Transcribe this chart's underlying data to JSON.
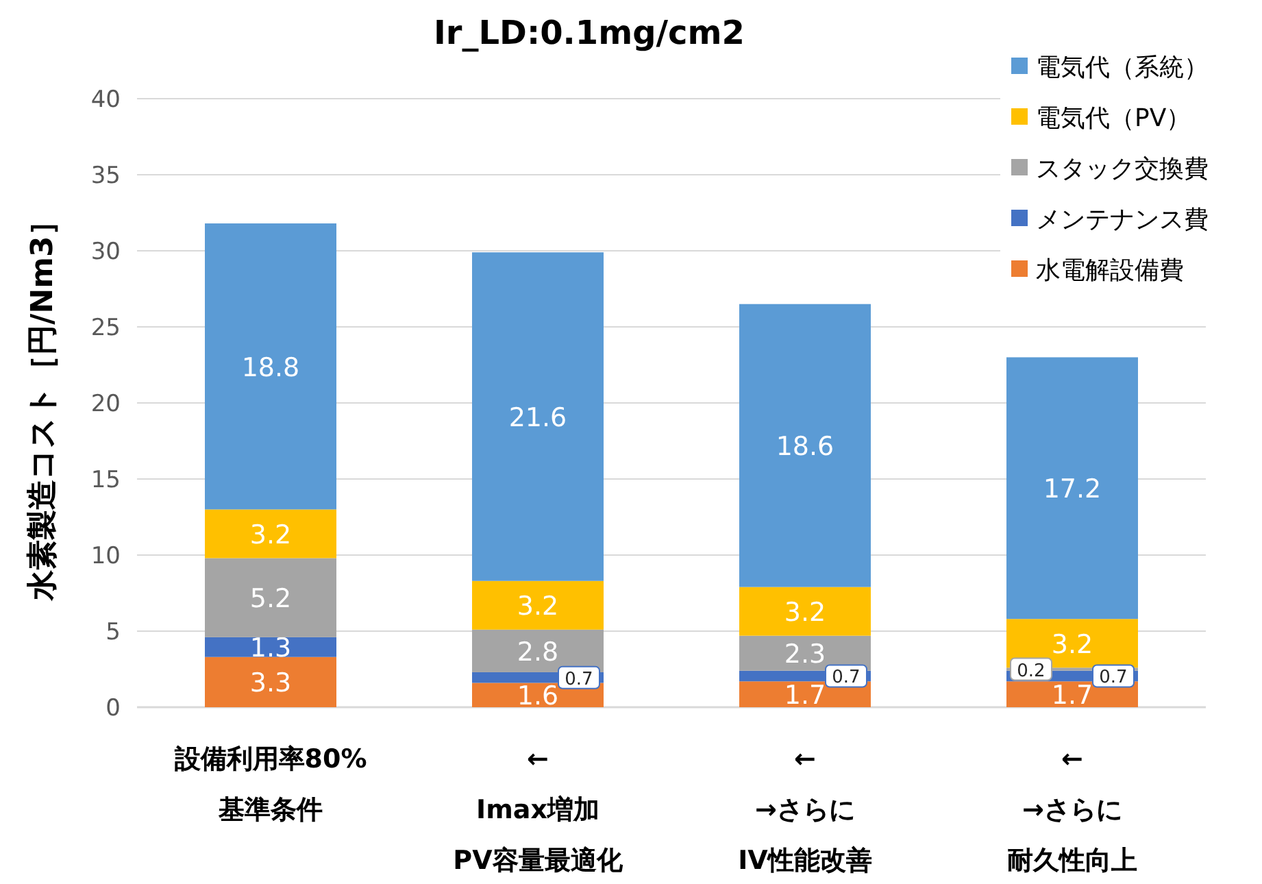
{
  "chart_data": {
    "type": "bar",
    "title": "Ir_LD:0.1mg/cm2",
    "ylabel": "水素製造コスト［円/Nm3］",
    "categories": [
      "設備利用率80%\n基準条件",
      "←\nImax増加\nPV容量最適化",
      "←\n→さらに\nIV性能改善",
      "←\n→さらに耐久性向上"
    ],
    "stacked": true,
    "data_labels": true,
    "grid": "y",
    "legend": "top right",
    "ylim": [
      0,
      40
    ],
    "yticks": [
      0,
      5,
      10,
      15,
      20,
      25,
      30,
      35,
      40
    ],
    "series": [
      {
        "name": "水電解設備費",
        "color": "#ed7d31",
        "values": [
          3.3,
          1.6,
          1.7,
          1.7
        ]
      },
      {
        "name": "メンテナンス費",
        "color": "#4472c4",
        "values": [
          1.3,
          0.7,
          0.7,
          0.7
        ]
      },
      {
        "name": "スタック交換費",
        "color": "#a5a5a5",
        "values": [
          5.2,
          2.8,
          2.3,
          0.2
        ]
      },
      {
        "name": "電気代（PV）",
        "color": "#ffc000",
        "values": [
          3.2,
          3.2,
          3.2,
          3.2
        ]
      },
      {
        "name": "電気代（系統）",
        "color": "#5b9bd5",
        "values": [
          18.8,
          21.6,
          18.6,
          17.2
        ]
      }
    ]
  }
}
